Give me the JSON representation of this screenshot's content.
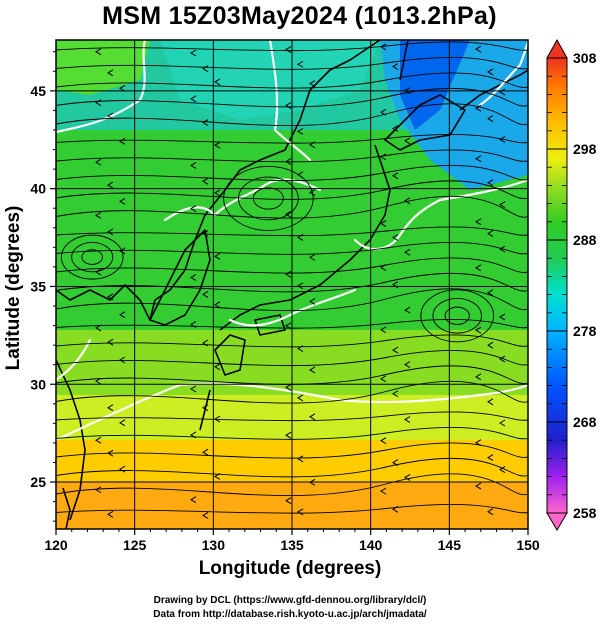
{
  "title": "MSM 15Z03May2024 (1013.2hPa)",
  "axes": {
    "x_label": "Longitude (degrees)",
    "y_label": "Latitude  (degrees)",
    "x_range": [
      120,
      150
    ],
    "y_range": [
      22.6,
      47.6
    ],
    "x_ticks": [
      120,
      125,
      130,
      135,
      140,
      145,
      150
    ],
    "y_ticks": [
      25,
      30,
      35,
      40,
      45
    ]
  },
  "colorbar": {
    "min": 258,
    "max": 308,
    "labels": [
      "308",
      "298",
      "288",
      "278",
      "268",
      "258"
    ],
    "colors": [
      "#ff66cc",
      "#a020f0",
      "#0000cc",
      "#0044ff",
      "#00a0ff",
      "#00e0ff",
      "#00d28c",
      "#22cc22",
      "#66dd22",
      "#ccee22",
      "#ffdd00",
      "#ffaa00",
      "#ff6600",
      "#ee2222"
    ]
  },
  "credits": {
    "line1": "Drawing by DCL (https://www.gfd-dennou.org/library/dcl/)",
    "line2": "Data from http://database.rish.kyoto-u.ac.jp/arch/jmadata/"
  }
}
